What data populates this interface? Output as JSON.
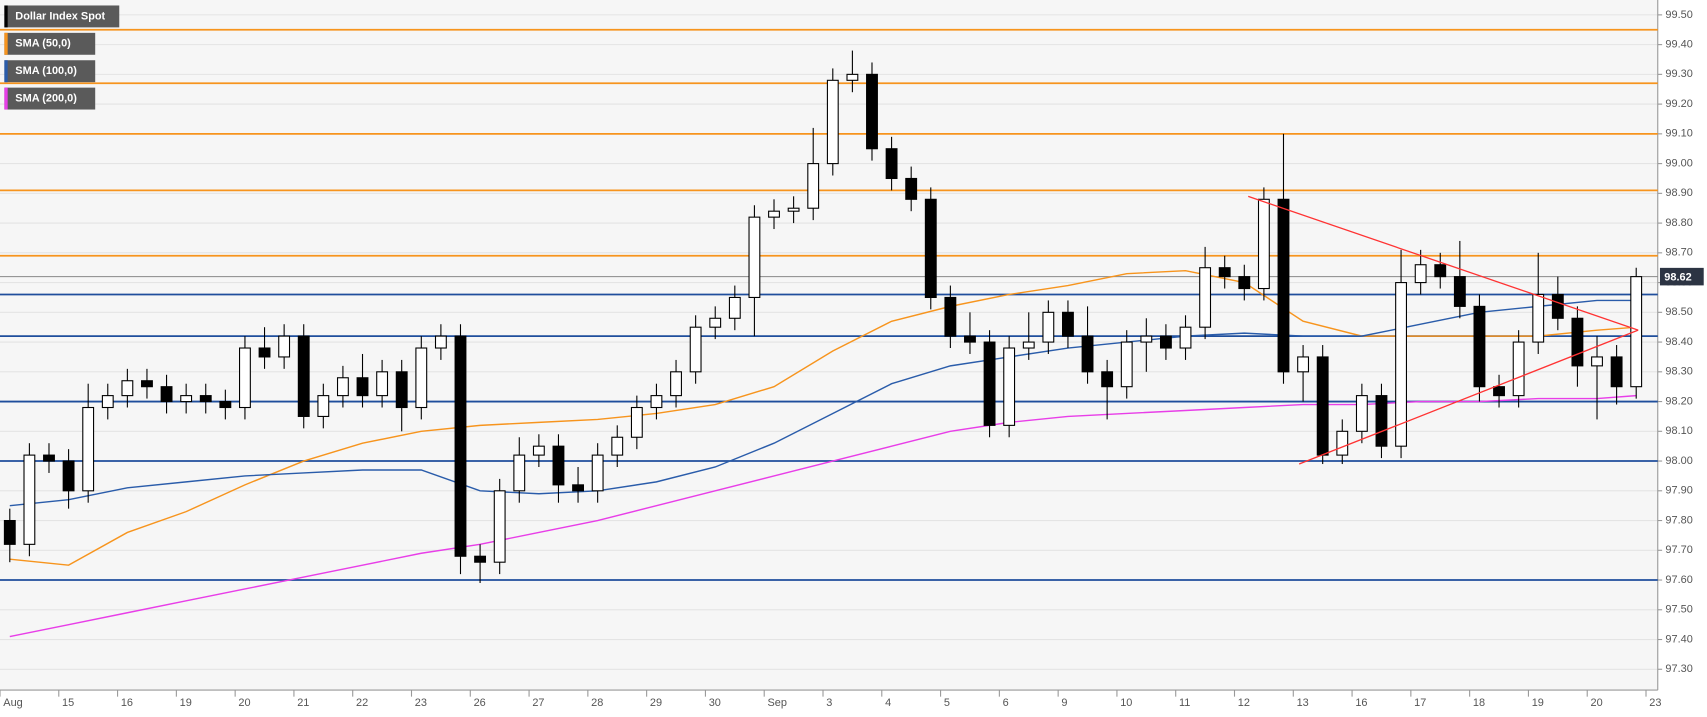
{
  "chart_data": {
    "type": "candlestick",
    "title": "Dollar Index Spot",
    "up_color": "#ffffff",
    "down_color": "#000000",
    "open": [
      97.8,
      97.72,
      98.02,
      98.0,
      97.9,
      98.18,
      98.22,
      98.27,
      98.25,
      98.2,
      98.22,
      98.2,
      98.18,
      98.38,
      98.35,
      98.42,
      98.15,
      98.22,
      98.28,
      98.22,
      98.3,
      98.18,
      98.38,
      98.42,
      97.68,
      97.66,
      97.9,
      98.02,
      98.05,
      97.92,
      97.9,
      98.02,
      98.08,
      98.18,
      98.22,
      98.3,
      98.45,
      98.48,
      98.55,
      98.82,
      98.84,
      98.85,
      99.0,
      99.28,
      99.3,
      99.05,
      98.95,
      98.88,
      98.55,
      98.42,
      98.4,
      98.12,
      98.38,
      98.4,
      98.5,
      98.42,
      98.3,
      98.25,
      98.4,
      98.42,
      98.38,
      98.45,
      98.65,
      98.62,
      98.58,
      98.88,
      98.3,
      98.35,
      98.02,
      98.1,
      98.22,
      98.05,
      98.6,
      98.66,
      98.62,
      98.52,
      98.25,
      98.22,
      98.4,
      98.56,
      98.48,
      98.32,
      98.35,
      98.25
    ],
    "high": [
      97.84,
      98.06,
      98.06,
      98.04,
      98.26,
      98.26,
      98.31,
      98.31,
      98.29,
      98.26,
      98.26,
      98.24,
      98.42,
      98.45,
      98.46,
      98.46,
      98.26,
      98.32,
      98.36,
      98.34,
      98.34,
      98.42,
      98.46,
      98.46,
      97.72,
      97.94,
      98.08,
      98.09,
      98.09,
      97.98,
      98.06,
      98.12,
      98.22,
      98.26,
      98.34,
      98.49,
      98.52,
      98.59,
      98.86,
      98.88,
      98.89,
      99.12,
      99.32,
      99.38,
      99.34,
      99.09,
      98.99,
      98.92,
      98.59,
      98.5,
      98.44,
      98.42,
      98.5,
      98.54,
      98.54,
      98.52,
      98.34,
      98.44,
      98.48,
      98.46,
      98.49,
      98.72,
      98.69,
      98.66,
      98.92,
      99.1,
      98.39,
      98.39,
      98.14,
      98.26,
      98.26,
      98.71,
      98.71,
      98.7,
      98.74,
      98.56,
      98.29,
      98.44,
      98.7,
      98.62,
      98.52,
      98.42,
      98.39,
      98.65
    ],
    "low": [
      97.66,
      97.68,
      97.96,
      97.84,
      97.86,
      98.14,
      98.18,
      98.21,
      98.16,
      98.16,
      98.16,
      98.14,
      98.14,
      98.31,
      98.31,
      98.11,
      98.11,
      98.18,
      98.18,
      98.18,
      98.1,
      98.14,
      98.34,
      97.62,
      97.59,
      97.62,
      97.86,
      97.98,
      97.86,
      97.86,
      97.86,
      97.98,
      98.04,
      98.14,
      98.18,
      98.26,
      98.41,
      98.44,
      98.42,
      98.78,
      98.8,
      98.81,
      98.96,
      99.24,
      99.01,
      98.91,
      98.84,
      98.51,
      98.38,
      98.36,
      98.08,
      98.08,
      98.34,
      98.36,
      98.38,
      98.26,
      98.14,
      98.21,
      98.3,
      98.34,
      98.34,
      98.41,
      98.58,
      98.54,
      98.54,
      98.26,
      98.2,
      97.99,
      97.99,
      98.06,
      98.01,
      98.01,
      98.56,
      98.58,
      98.48,
      98.2,
      98.18,
      98.18,
      98.36,
      98.44,
      98.25,
      98.14,
      98.19,
      98.21
    ],
    "close": [
      97.72,
      98.02,
      98.0,
      97.9,
      98.18,
      98.22,
      98.27,
      98.25,
      98.2,
      98.22,
      98.2,
      98.18,
      98.38,
      98.35,
      98.42,
      98.15,
      98.22,
      98.28,
      98.22,
      98.3,
      98.18,
      98.38,
      98.42,
      97.68,
      97.66,
      97.9,
      98.02,
      98.05,
      97.92,
      97.9,
      98.02,
      98.08,
      98.18,
      98.22,
      98.3,
      98.45,
      98.48,
      98.55,
      98.82,
      98.84,
      98.85,
      99.0,
      99.28,
      99.3,
      99.05,
      98.95,
      98.88,
      98.55,
      98.42,
      98.4,
      98.12,
      98.38,
      98.4,
      98.5,
      98.42,
      98.3,
      98.25,
      98.4,
      98.42,
      98.38,
      98.45,
      98.65,
      98.62,
      98.58,
      98.88,
      98.3,
      98.35,
      98.02,
      98.1,
      98.22,
      98.05,
      98.6,
      98.66,
      98.62,
      98.52,
      98.25,
      98.22,
      98.4,
      98.56,
      98.48,
      98.32,
      98.35,
      98.25,
      98.62
    ],
    "sma_x": [
      0,
      3,
      6,
      9,
      12,
      15,
      18,
      21,
      24,
      27,
      30,
      33,
      36,
      39,
      42,
      45,
      48,
      51,
      54,
      57,
      60,
      63,
      66,
      69,
      72,
      75,
      78,
      81,
      83
    ],
    "series": [
      {
        "name": "SMA (50,0)",
        "color": "#f7941d",
        "values": [
          97.67,
          97.65,
          97.76,
          97.83,
          97.92,
          98.0,
          98.06,
          98.1,
          98.12,
          98.13,
          98.14,
          98.16,
          98.19,
          98.25,
          98.37,
          98.47,
          98.52,
          98.56,
          98.59,
          98.63,
          98.64,
          98.6,
          98.47,
          98.42,
          98.42,
          98.42,
          98.42,
          98.44,
          98.45
        ]
      },
      {
        "name": "SMA (100,0)",
        "color": "#2a5caa",
        "values": [
          97.85,
          97.87,
          97.91,
          97.93,
          97.95,
          97.96,
          97.97,
          97.97,
          97.9,
          97.89,
          97.9,
          97.93,
          97.98,
          98.06,
          98.16,
          98.26,
          98.32,
          98.35,
          98.38,
          98.4,
          98.42,
          98.43,
          98.42,
          98.42,
          98.46,
          98.5,
          98.52,
          98.54,
          98.54
        ]
      },
      {
        "name": "SMA (200,0)",
        "color": "#e83ee8",
        "values": [
          97.41,
          97.45,
          97.49,
          97.53,
          97.57,
          97.61,
          97.65,
          97.69,
          97.72,
          97.76,
          97.8,
          97.85,
          97.9,
          97.95,
          98.0,
          98.05,
          98.1,
          98.13,
          98.15,
          98.16,
          98.17,
          98.18,
          98.19,
          98.19,
          98.2,
          98.2,
          98.21,
          98.21,
          98.22
        ]
      }
    ],
    "resistance_color": "#f7941d",
    "resistance_levels": [
      99.45,
      99.27,
      99.1,
      98.91,
      98.69
    ],
    "support_color": "#1f4e9c",
    "support_levels": [
      98.56,
      98.42,
      98.2,
      98.0,
      97.6
    ],
    "trendline_color": "#ff3333",
    "trendlines": [
      {
        "x": [
          63.2,
          83.1
        ],
        "y": [
          98.89,
          98.44
        ]
      },
      {
        "x": [
          65.8,
          83.1
        ],
        "y": [
          97.99,
          98.44
        ]
      }
    ],
    "last_price": 98.62,
    "xlim": [
      -0.5,
      84.1
    ],
    "ylim": [
      97.23,
      99.55
    ],
    "xticks": [
      {
        "value": -0.5,
        "label": "Aug"
      },
      {
        "value": 2.5,
        "label": "15"
      },
      {
        "value": 5.5,
        "label": "16"
      },
      {
        "value": 8.5,
        "label": "19"
      },
      {
        "value": 11.5,
        "label": "20"
      },
      {
        "value": 14.5,
        "label": "21"
      },
      {
        "value": 17.5,
        "label": "22"
      },
      {
        "value": 20.5,
        "label": "23"
      },
      {
        "value": 23.5,
        "label": "26"
      },
      {
        "value": 26.5,
        "label": "27"
      },
      {
        "value": 29.5,
        "label": "28"
      },
      {
        "value": 32.5,
        "label": "29"
      },
      {
        "value": 35.5,
        "label": "30"
      },
      {
        "value": 38.5,
        "label": "Sep"
      },
      {
        "value": 41.5,
        "label": "3"
      },
      {
        "value": 44.5,
        "label": "4"
      },
      {
        "value": 47.5,
        "label": "5"
      },
      {
        "value": 50.5,
        "label": "6"
      },
      {
        "value": 53.5,
        "label": "9"
      },
      {
        "value": 56.5,
        "label": "10"
      },
      {
        "value": 59.5,
        "label": "11"
      },
      {
        "value": 62.5,
        "label": "12"
      },
      {
        "value": 65.5,
        "label": "13"
      },
      {
        "value": 68.5,
        "label": "16"
      },
      {
        "value": 71.5,
        "label": "17"
      },
      {
        "value": 74.5,
        "label": "18"
      },
      {
        "value": 77.5,
        "label": "19"
      },
      {
        "value": 80.5,
        "label": "20"
      },
      {
        "value": 83.5,
        "label": "23"
      }
    ],
    "yticks": [
      {
        "value": 97.3,
        "label": "97.30"
      },
      {
        "value": 97.4,
        "label": "97.40"
      },
      {
        "value": 97.5,
        "label": "97.50"
      },
      {
        "value": 97.6,
        "label": "97.60"
      },
      {
        "value": 97.7,
        "label": "97.70"
      },
      {
        "value": 97.8,
        "label": "97.80"
      },
      {
        "value": 97.9,
        "label": "97.90"
      },
      {
        "value": 98.0,
        "label": "98.00"
      },
      {
        "value": 98.1,
        "label": "98.10"
      },
      {
        "value": 98.2,
        "label": "98.20"
      },
      {
        "value": 98.3,
        "label": "98.30"
      },
      {
        "value": 98.4,
        "label": "98.40"
      },
      {
        "value": 98.5,
        "label": "98.50"
      },
      {
        "value": 98.6,
        "label": "98.60"
      },
      {
        "value": 98.7,
        "label": "98.70"
      },
      {
        "value": 98.8,
        "label": "98.80"
      },
      {
        "value": 98.9,
        "label": "98.90"
      },
      {
        "value": 99.0,
        "label": "99.00"
      },
      {
        "value": 99.1,
        "label": "99.10"
      },
      {
        "value": 99.2,
        "label": "99.20"
      },
      {
        "value": 99.3,
        "label": "99.30"
      },
      {
        "value": 99.4,
        "label": "99.40"
      },
      {
        "value": 99.5,
        "label": "99.50"
      }
    ],
    "grid": true
  }
}
